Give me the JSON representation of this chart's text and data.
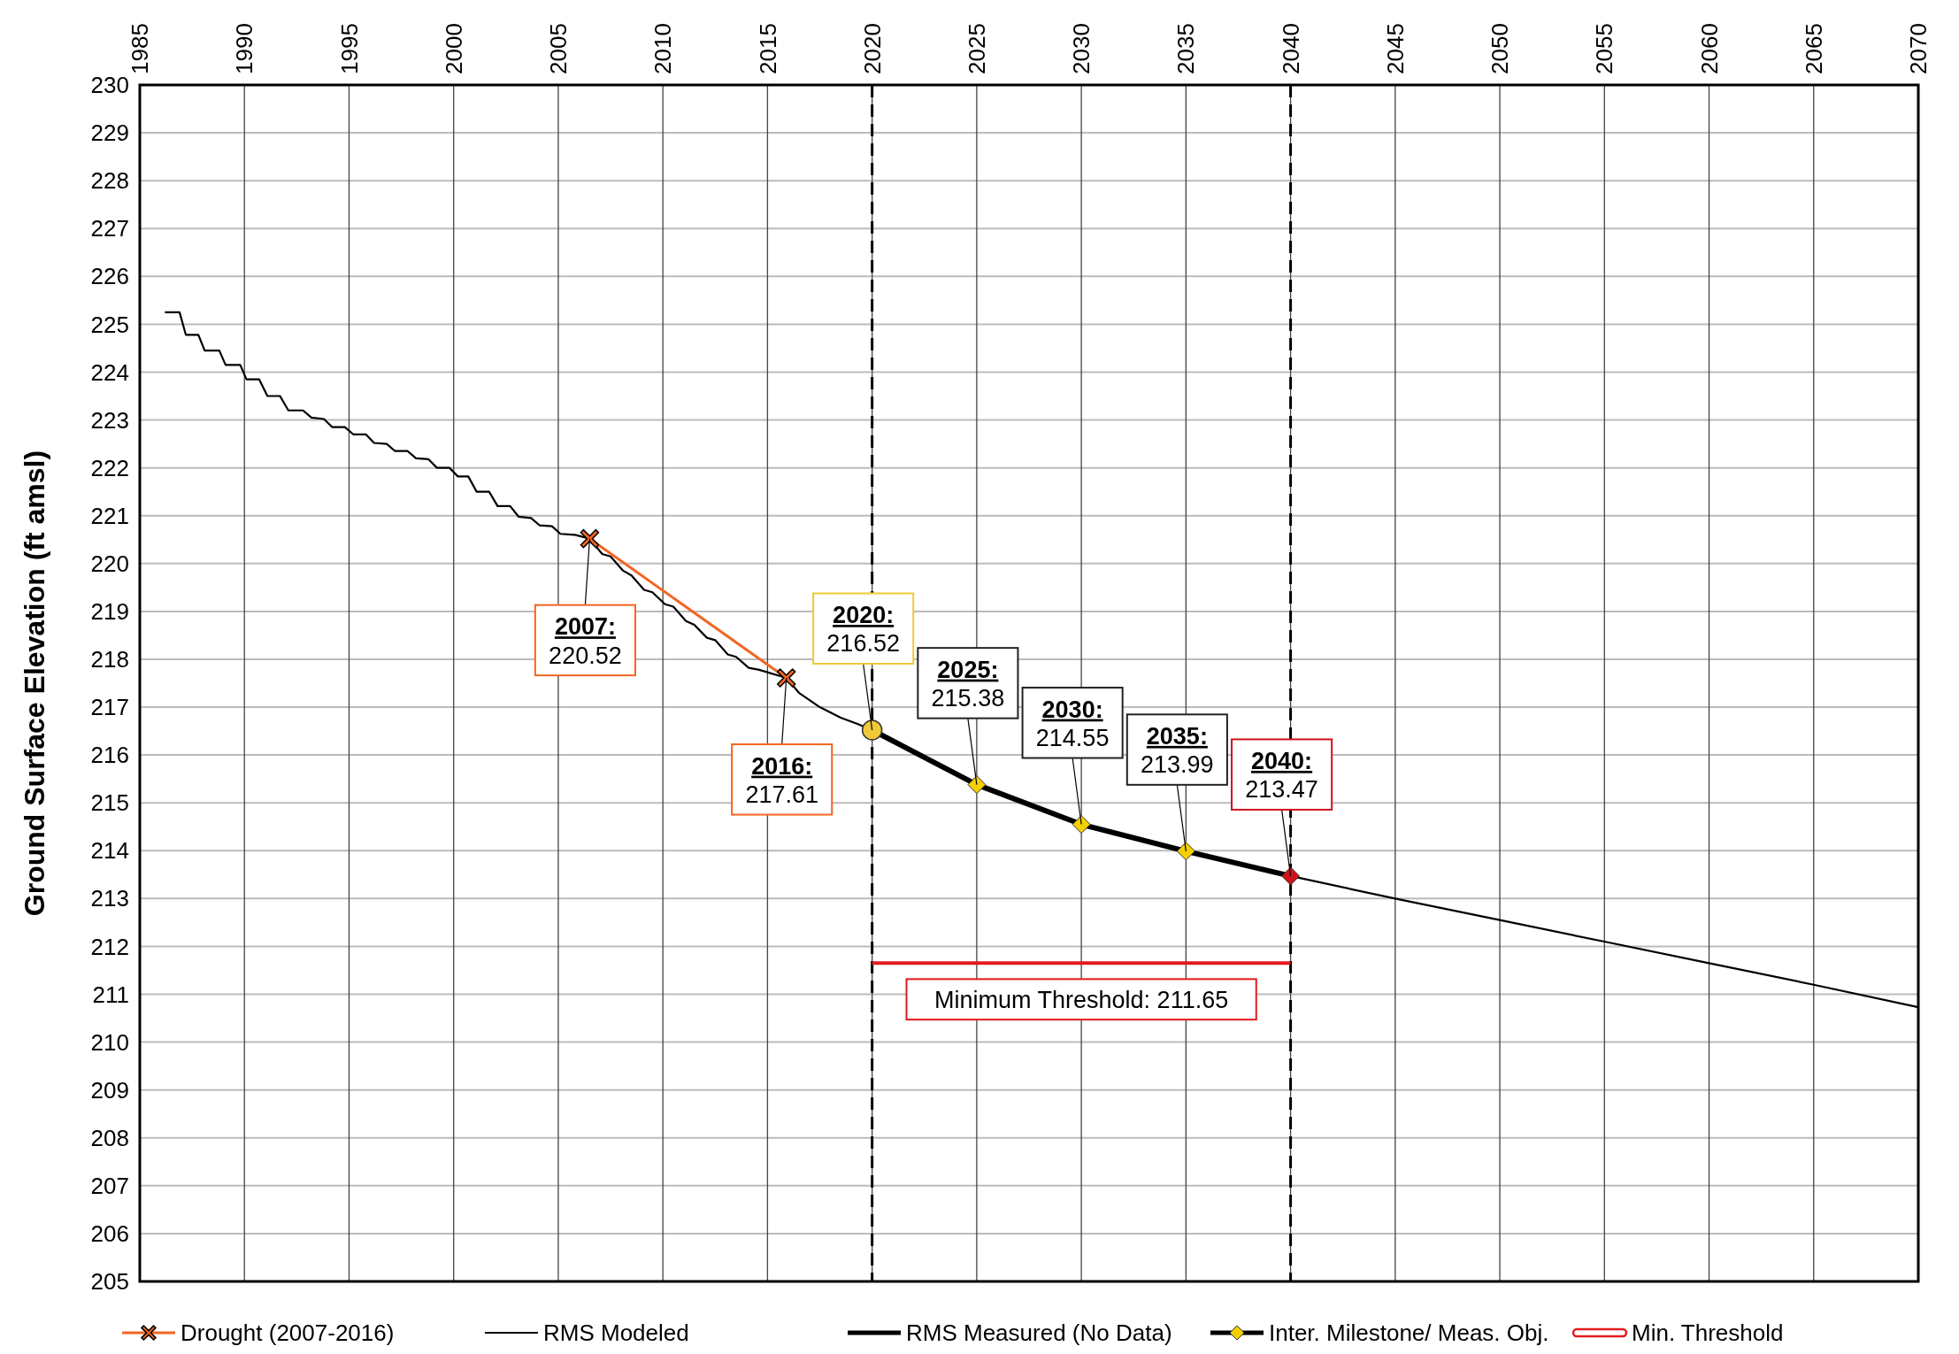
{
  "chart_data": {
    "type": "line",
    "ylabel": "Ground Surface Elevation (ft amsl)",
    "xlim": [
      1985,
      2070
    ],
    "xticks": [
      1985,
      1990,
      1995,
      2000,
      2005,
      2010,
      2015,
      2020,
      2025,
      2030,
      2035,
      2040,
      2045,
      2050,
      2055,
      2060,
      2065,
      2070
    ],
    "ylim": [
      205,
      230
    ],
    "yticks": [
      205,
      206,
      207,
      208,
      209,
      210,
      211,
      212,
      213,
      214,
      215,
      216,
      217,
      218,
      219,
      220,
      221,
      222,
      223,
      224,
      225,
      226,
      227,
      228,
      229,
      230
    ],
    "grid": true,
    "legend": "bottom",
    "line_style": "solid",
    "series": [
      {
        "name": "Drought (2007-2016)",
        "color": "#f26522",
        "marker": "cross",
        "x": [
          2006.5,
          2015.9
        ],
        "values": [
          220.52,
          217.61
        ]
      },
      {
        "name": "RMS Modeled",
        "color": "#000000",
        "marker": "none",
        "x": [
          1986.2,
          1986.9,
          1987.2,
          1987.8,
          1988.1,
          1988.8,
          1989.1,
          1989.8,
          1990.1,
          1990.7,
          1991.1,
          1991.7,
          1992.1,
          1992.8,
          1993.2,
          1993.8,
          1994.2,
          1994.8,
          1995.2,
          1995.8,
          1996.2,
          1996.8,
          1997.2,
          1997.8,
          1998.2,
          1998.8,
          1999.2,
          1999.8,
          2000.2,
          2000.7,
          2001.1,
          2001.7,
          2002.1,
          2002.7,
          2003.1,
          2003.7,
          2004.1,
          2004.7,
          2005.1,
          2005.8,
          2006.5,
          2007.1,
          2007.5,
          2008.1,
          2008.5,
          2009.1,
          2009.5,
          2010.1,
          2010.5,
          2011.1,
          2011.5,
          2012.1,
          2012.5,
          2013.1,
          2013.5,
          2014.1,
          2014.6,
          2015.9,
          2016.5,
          2017.5,
          2018.5,
          2019.3,
          2020,
          2025,
          2030,
          2035,
          2040,
          2045,
          2050,
          2055,
          2060,
          2065,
          2070
        ],
        "values": [
          225.25,
          225.25,
          224.78,
          224.78,
          224.45,
          224.45,
          224.15,
          224.15,
          223.85,
          223.85,
          223.5,
          223.5,
          223.2,
          223.2,
          223.05,
          223.02,
          222.85,
          222.85,
          222.7,
          222.7,
          222.52,
          222.5,
          222.35,
          222.35,
          222.2,
          222.18,
          222.0,
          222.0,
          221.82,
          221.82,
          221.5,
          221.5,
          221.2,
          221.2,
          220.98,
          220.95,
          220.8,
          220.78,
          220.62,
          220.6,
          220.52,
          220.2,
          220.15,
          219.85,
          219.75,
          219.45,
          219.4,
          219.15,
          219.1,
          218.8,
          218.72,
          218.45,
          218.4,
          218.1,
          218.05,
          217.82,
          217.78,
          217.61,
          217.3,
          217.0,
          216.78,
          216.65,
          216.52,
          215.38,
          214.55,
          213.99,
          213.47,
          213.0,
          212.55,
          212.1,
          211.65,
          211.2,
          210.73
        ]
      },
      {
        "name": "RMS Measured (No Data)",
        "color": "#000000",
        "marker": "none"
      },
      {
        "name": "Inter. Milestone/ Meas. Obj.",
        "color": "#000000",
        "marker": "none",
        "x": [
          2020,
          2025,
          2030,
          2035,
          2040
        ],
        "values": [
          216.52,
          215.38,
          214.55,
          213.99,
          213.47
        ]
      },
      {
        "name": "Min. Threshold",
        "color": "#e31a1c",
        "marker": "none",
        "x": [
          2020,
          2040
        ],
        "values": [
          211.65,
          211.65
        ]
      },
      {
        "type": "scatter",
        "color": "#f5d000",
        "marker": "diamond",
        "x": [
          2025,
          2030,
          2035
        ],
        "values": [
          215.38,
          214.55,
          213.99
        ]
      },
      {
        "type": "scatter",
        "color": "#f0c93a",
        "marker": "circle",
        "x": [
          2020
        ],
        "values": [
          216.52
        ]
      },
      {
        "type": "scatter",
        "color": "#d0121b",
        "marker": "diamond",
        "x": [
          2040
        ],
        "values": [
          213.47
        ]
      }
    ],
    "ref_lines": [
      {
        "axis": "x",
        "value": 2020,
        "line_style": "dashed",
        "color": "#000000"
      },
      {
        "axis": "x",
        "value": 2040,
        "line_style": "dashed",
        "color": "#000000"
      }
    ],
    "annotations": [
      {
        "text": "2007:\n220.52",
        "x": 2006.5,
        "y": 220.52
      },
      {
        "text": "2016:\n217.61",
        "x": 2015.9,
        "y": 217.61
      },
      {
        "text": "2020:\n216.52",
        "x": 2020,
        "y": 216.52
      },
      {
        "text": "2025:\n215.38",
        "x": 2025,
        "y": 215.38
      },
      {
        "text": "2030:\n214.55",
        "x": 2030,
        "y": 214.55
      },
      {
        "text": "2035:\n213.99",
        "x": 2035,
        "y": 213.99
      },
      {
        "text": "2040:\n213.47",
        "x": 2040,
        "y": 213.47
      },
      "Minimum Threshold: 211.65"
    ]
  }
}
